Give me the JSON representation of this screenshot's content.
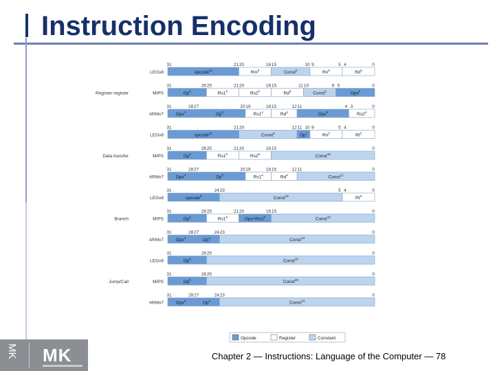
{
  "slide": {
    "title": "Instruction Encoding",
    "footer": "Chapter 2 — Instructions: Language of the Computer — 78",
    "logo_text": "MK"
  },
  "colors": {
    "title": "#16306b",
    "opcode": "#6b9bd4",
    "register": "#ffffff",
    "constant": "#bdd4ee",
    "border": "#7f9fc8"
  },
  "legend": [
    {
      "label": "Opcode",
      "kind": "opcode"
    },
    {
      "label": "Register",
      "kind": "register"
    },
    {
      "label": "Constant",
      "kind": "constant"
    }
  ],
  "groups": [
    {
      "label": "Register-register",
      "rows": [
        {
          "arch": "LEGv8",
          "bits": [
            "31",
            "21",
            "20",
            "16",
            "15",
            "10",
            "9",
            "5",
            "4",
            "0"
          ],
          "fields": [
            {
              "label": "opcode",
              "sup": "11",
              "kind": "opcode",
              "span": 11
            },
            {
              "label": "Rm",
              "sup": "5",
              "kind": "register",
              "span": 5
            },
            {
              "label": "Const",
              "sup": "6",
              "kind": "constant",
              "span": 6
            },
            {
              "label": "Rn",
              "sup": "5",
              "kind": "register",
              "span": 5
            },
            {
              "label": "Rd",
              "sup": "5",
              "kind": "register",
              "span": 5
            }
          ]
        },
        {
          "arch": "MIPS",
          "bits": [
            "31",
            "26",
            "25",
            "21",
            "20",
            "16",
            "15",
            "11",
            "10",
            "6",
            "5",
            "0"
          ],
          "fields": [
            {
              "label": "Op",
              "sup": "6",
              "kind": "opcode",
              "span": 6
            },
            {
              "label": "Rs1",
              "sup": "5",
              "kind": "register",
              "span": 5
            },
            {
              "label": "Rs2",
              "sup": "5",
              "kind": "register",
              "span": 5
            },
            {
              "label": "Rd",
              "sup": "5",
              "kind": "register",
              "span": 5
            },
            {
              "label": "Const",
              "sup": "5",
              "kind": "constant",
              "span": 5
            },
            {
              "label": "Opx",
              "sup": "6",
              "kind": "opcode",
              "span": 6
            }
          ]
        },
        {
          "arch": "ARMv7",
          "bits": [
            "31",
            "28",
            "27",
            "20",
            "19",
            "16",
            "15",
            "12",
            "11",
            "4",
            "3",
            "0"
          ],
          "fields": [
            {
              "label": "Opx",
              "sup": "4",
              "kind": "opcode",
              "span": 4
            },
            {
              "label": "Op",
              "sup": "8",
              "kind": "opcode",
              "span": 8
            },
            {
              "label": "Rs1",
              "sup": "4",
              "kind": "register",
              "span": 4
            },
            {
              "label": "Rd",
              "sup": "4",
              "kind": "register",
              "span": 4
            },
            {
              "label": "Opx",
              "sup": "8",
              "kind": "opcode",
              "span": 8
            },
            {
              "label": "Rs2",
              "sup": "4",
              "kind": "register",
              "span": 4
            }
          ]
        }
      ]
    },
    {
      "label": "Data transfer",
      "rows": [
        {
          "arch": "LEGv8",
          "bits": [
            "31",
            "21",
            "20",
            "12",
            "11",
            "10",
            "9",
            "5",
            "4",
            "0"
          ],
          "fields": [
            {
              "label": "opcode",
              "sup": "11",
              "kind": "opcode",
              "span": 11
            },
            {
              "label": "Const",
              "sup": "9",
              "kind": "constant",
              "span": 9
            },
            {
              "label": "Op",
              "sup": "2",
              "kind": "opcode",
              "span": 2
            },
            {
              "label": "Rn",
              "sup": "5",
              "kind": "register",
              "span": 5
            },
            {
              "label": "Rt",
              "sup": "5",
              "kind": "register",
              "span": 5
            }
          ]
        },
        {
          "arch": "MIPS",
          "bits": [
            "31",
            "26",
            "25",
            "21",
            "20",
            "16",
            "15",
            "0"
          ],
          "fields": [
            {
              "label": "Op",
              "sup": "6",
              "kind": "opcode",
              "span": 6
            },
            {
              "label": "Rs1",
              "sup": "5",
              "kind": "register",
              "span": 5
            },
            {
              "label": "Rs2",
              "sup": "5",
              "kind": "register",
              "span": 5
            },
            {
              "label": "Const",
              "sup": "16",
              "kind": "constant",
              "span": 16
            }
          ]
        },
        {
          "arch": "ARMv7",
          "bits": [
            "31",
            "28",
            "27",
            "20",
            "19",
            "16",
            "15",
            "12",
            "11",
            "0"
          ],
          "fields": [
            {
              "label": "Opx",
              "sup": "4",
              "kind": "opcode",
              "span": 4
            },
            {
              "label": "Op",
              "sup": "8",
              "kind": "opcode",
              "span": 8
            },
            {
              "label": "Rs1",
              "sup": "4",
              "kind": "register",
              "span": 4
            },
            {
              "label": "Rd",
              "sup": "4",
              "kind": "register",
              "span": 4
            },
            {
              "label": "Const",
              "sup": "12",
              "kind": "constant",
              "span": 12
            }
          ]
        }
      ]
    },
    {
      "label": "Branch",
      "rows": [
        {
          "arch": "LEGv8",
          "bits": [
            "31",
            "24",
            "23",
            "5",
            "4",
            "0"
          ],
          "fields": [
            {
              "label": "opcode",
              "sup": "8",
              "kind": "opcode",
              "span": 8
            },
            {
              "label": "Const",
              "sup": "19",
              "kind": "constant",
              "span": 19
            },
            {
              "label": "Rt",
              "sup": "5",
              "kind": "register",
              "span": 5
            }
          ]
        },
        {
          "arch": "MIPS",
          "bits": [
            "31",
            "26",
            "25",
            "21",
            "20",
            "16",
            "15",
            "0"
          ],
          "fields": [
            {
              "label": "Op",
              "sup": "6",
              "kind": "opcode",
              "span": 6
            },
            {
              "label": "Rs1",
              "sup": "5",
              "kind": "register",
              "span": 5
            },
            {
              "label": "Opx⁵/Rs2",
              "sup": "5",
              "kind": "opcode",
              "span": 5
            },
            {
              "label": "Const",
              "sup": "16",
              "kind": "constant",
              "span": 16
            }
          ]
        },
        {
          "arch": "ARMv7",
          "bits": [
            "31",
            "28",
            "27",
            "24",
            "23",
            "0"
          ],
          "fields": [
            {
              "label": "Opx",
              "sup": "4",
              "kind": "opcode",
              "span": 4
            },
            {
              "label": "Op",
              "sup": "4",
              "kind": "opcode",
              "span": 4
            },
            {
              "label": "Const",
              "sup": "24",
              "kind": "constant",
              "span": 24
            }
          ]
        }
      ]
    },
    {
      "label": "Jump/Call",
      "rows": [
        {
          "arch": "LEGv8",
          "bits": [
            "31",
            "26",
            "25",
            "0"
          ],
          "fields": [
            {
              "label": "Op",
              "sup": "6",
              "kind": "opcode",
              "span": 6
            },
            {
              "label": "Const",
              "sup": "26",
              "kind": "constant",
              "span": 26
            }
          ]
        },
        {
          "arch": "MIPS",
          "bits": [
            "31",
            "26",
            "25",
            "0"
          ],
          "fields": [
            {
              "label": "Op",
              "sup": "6",
              "kind": "opcode",
              "span": 6
            },
            {
              "label": "Const",
              "sup": "26",
              "kind": "constant",
              "span": 26
            }
          ]
        },
        {
          "arch": "ARMv7",
          "bits": [
            "31",
            "28",
            "27",
            "24",
            "23",
            "0"
          ],
          "fields": [
            {
              "label": "Opx",
              "sup": "4",
              "kind": "opcode",
              "span": 4
            },
            {
              "label": "Op",
              "sup": "4",
              "kind": "opcode",
              "span": 4
            },
            {
              "label": "Const",
              "sup": "24",
              "kind": "constant",
              "span": 24
            }
          ]
        }
      ]
    }
  ]
}
